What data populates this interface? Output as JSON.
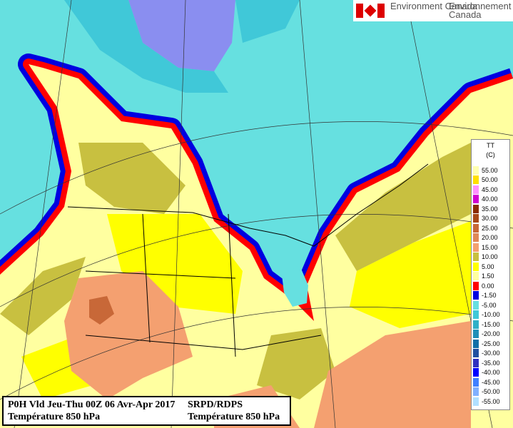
{
  "logo": {
    "english": "Environment Canada",
    "french": "Environnement Canada"
  },
  "legend": {
    "title": "TT",
    "unit": "(C)",
    "entries": [
      {
        "label": "55.00",
        "color": "#ffffb0"
      },
      {
        "label": "50.00",
        "color": "#ffe000"
      },
      {
        "label": "45.00",
        "color": "#ff90ff"
      },
      {
        "label": "40.00",
        "color": "#d000d0"
      },
      {
        "label": "35.00",
        "color": "#8a2a00"
      },
      {
        "label": "30.00",
        "color": "#a84818"
      },
      {
        "label": "25.00",
        "color": "#c86838"
      },
      {
        "label": "20.00",
        "color": "#e08858"
      },
      {
        "label": "15.00",
        "color": "#f4a070"
      },
      {
        "label": "10.00",
        "color": "#c8c040"
      },
      {
        "label": "5.00",
        "color": "#ffff00"
      },
      {
        "label": "1.50",
        "color": "#ffffa0"
      },
      {
        "label": "0.00",
        "color": "#ff0000"
      },
      {
        "label": "-1.50",
        "color": "#0000e0"
      },
      {
        "label": "-5.00",
        "color": "#66e0e0"
      },
      {
        "label": "-10.00",
        "color": "#40c8d8"
      },
      {
        "label": "-15.00",
        "color": "#30b0c8"
      },
      {
        "label": "-20.00",
        "color": "#2090b8"
      },
      {
        "label": "-25.00",
        "color": "#1070a8"
      },
      {
        "label": "-30.00",
        "color": "#2050a0"
      },
      {
        "label": "-35.00",
        "color": "#3030c0"
      },
      {
        "label": "-40.00",
        "color": "#0000ff"
      },
      {
        "label": "-45.00",
        "color": "#4080ff"
      },
      {
        "label": "-50.00",
        "color": "#80b0ff"
      },
      {
        "label": "-55.00",
        "color": "#b0e0ff"
      }
    ]
  },
  "title_box": {
    "left_line1": "P0H Vld Jeu-Thu 00Z 06 Avr-Apr 2017",
    "left_line2": "Température 850 hPa",
    "right_line1": "SRPD/RDPS",
    "right_line2": "Température 850 hPa"
  }
}
